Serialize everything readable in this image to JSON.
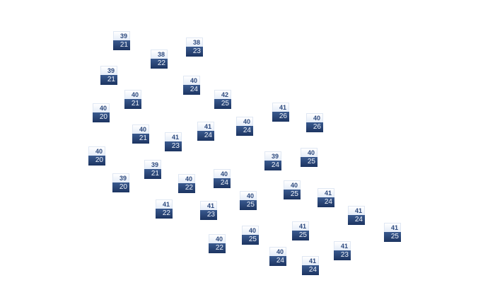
{
  "colors": {
    "high_bg": "#ffffff",
    "high_text": "#2e4a7e",
    "low_bg": "#233d6b",
    "low_text": "#eef2fa"
  },
  "markers": [
    {
      "high": "39",
      "low": "21"
    },
    {
      "high": "38",
      "low": "22"
    },
    {
      "high": "38",
      "low": "23"
    },
    {
      "high": "39",
      "low": "21"
    },
    {
      "high": "40",
      "low": "24"
    },
    {
      "high": "40",
      "low": "21"
    },
    {
      "high": "42",
      "low": "25"
    },
    {
      "high": "40",
      "low": "20"
    },
    {
      "high": "41",
      "low": "26"
    },
    {
      "high": "40",
      "low": "26"
    },
    {
      "high": "40",
      "low": "24"
    },
    {
      "high": "41",
      "low": "24"
    },
    {
      "high": "40",
      "low": "21"
    },
    {
      "high": "41",
      "low": "23"
    },
    {
      "high": "40",
      "low": "20"
    },
    {
      "high": "39",
      "low": "24"
    },
    {
      "high": "40",
      "low": "25"
    },
    {
      "high": "39",
      "low": "21"
    },
    {
      "high": "40",
      "low": "24"
    },
    {
      "high": "40",
      "low": "22"
    },
    {
      "high": "39",
      "low": "20"
    },
    {
      "high": "40",
      "low": "25"
    },
    {
      "high": "41",
      "low": "24"
    },
    {
      "high": "40",
      "low": "25"
    },
    {
      "high": "41",
      "low": "22"
    },
    {
      "high": "41",
      "low": "23"
    },
    {
      "high": "41",
      "low": "24"
    },
    {
      "high": "41",
      "low": "25"
    },
    {
      "high": "40",
      "low": "25"
    },
    {
      "high": "41",
      "low": "25"
    },
    {
      "high": "40",
      "low": "22"
    },
    {
      "high": "41",
      "low": "23"
    },
    {
      "high": "40",
      "low": "24"
    },
    {
      "high": "41",
      "low": "24"
    }
  ]
}
